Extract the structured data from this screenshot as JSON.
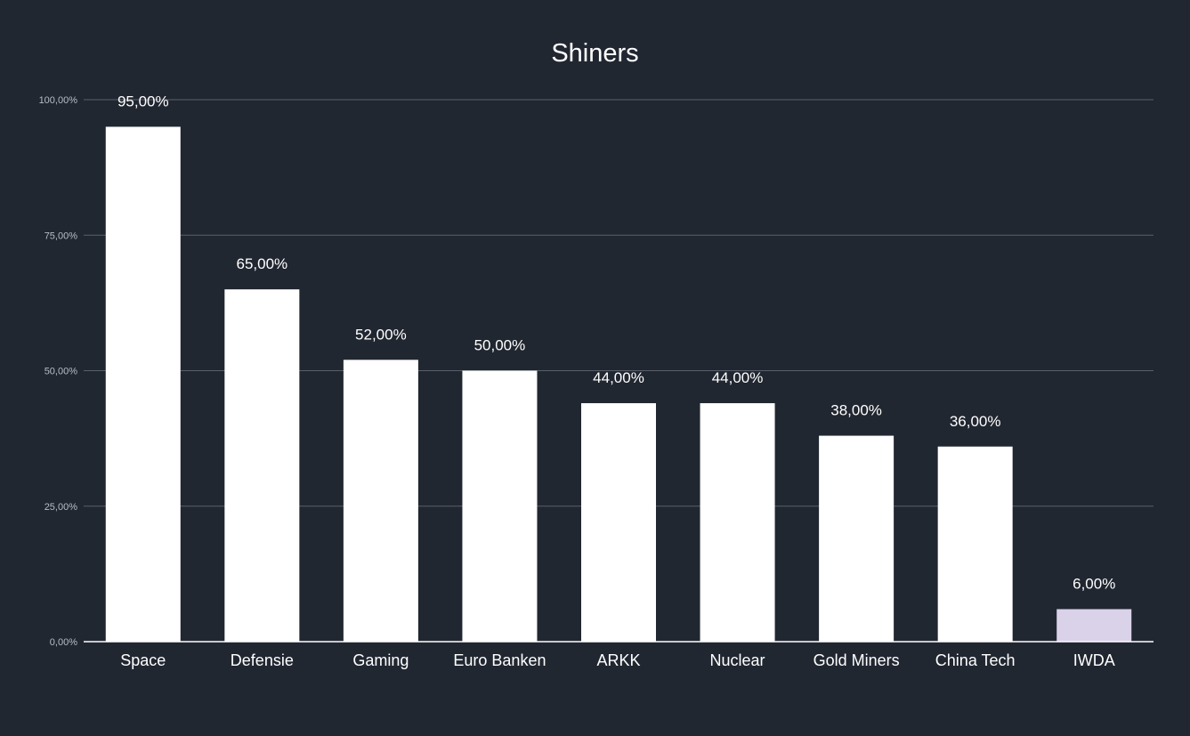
{
  "chart_data": {
    "type": "bar",
    "title": "Shiners",
    "categories": [
      "Space",
      "Defensie",
      "Gaming",
      "Euro Banken",
      "ARKK",
      "Nuclear",
      "Gold Miners",
      "China Tech",
      "IWDA"
    ],
    "values": [
      95,
      65,
      52,
      50,
      44,
      44,
      38,
      36,
      6
    ],
    "data_labels": [
      "95,00%",
      "65,00%",
      "52,00%",
      "50,00%",
      "44,00%",
      "44,00%",
      "38,00%",
      "36,00%",
      "6,00%"
    ],
    "y_ticks": [
      0,
      25,
      50,
      75,
      100
    ],
    "y_tick_labels": [
      "0,00%",
      "25,00%",
      "50,00%",
      "75,00%",
      "100,00%"
    ],
    "ylim": [
      0,
      100
    ],
    "xlabel": "",
    "ylabel": "",
    "grid": true,
    "legend": "none",
    "colors": {
      "background": "#212731",
      "bar": "#ffffff",
      "highlight_bar": "#d9d2e9",
      "grid": "#59606b",
      "text": "#ffffff"
    },
    "highlight_category": "IWDA"
  }
}
